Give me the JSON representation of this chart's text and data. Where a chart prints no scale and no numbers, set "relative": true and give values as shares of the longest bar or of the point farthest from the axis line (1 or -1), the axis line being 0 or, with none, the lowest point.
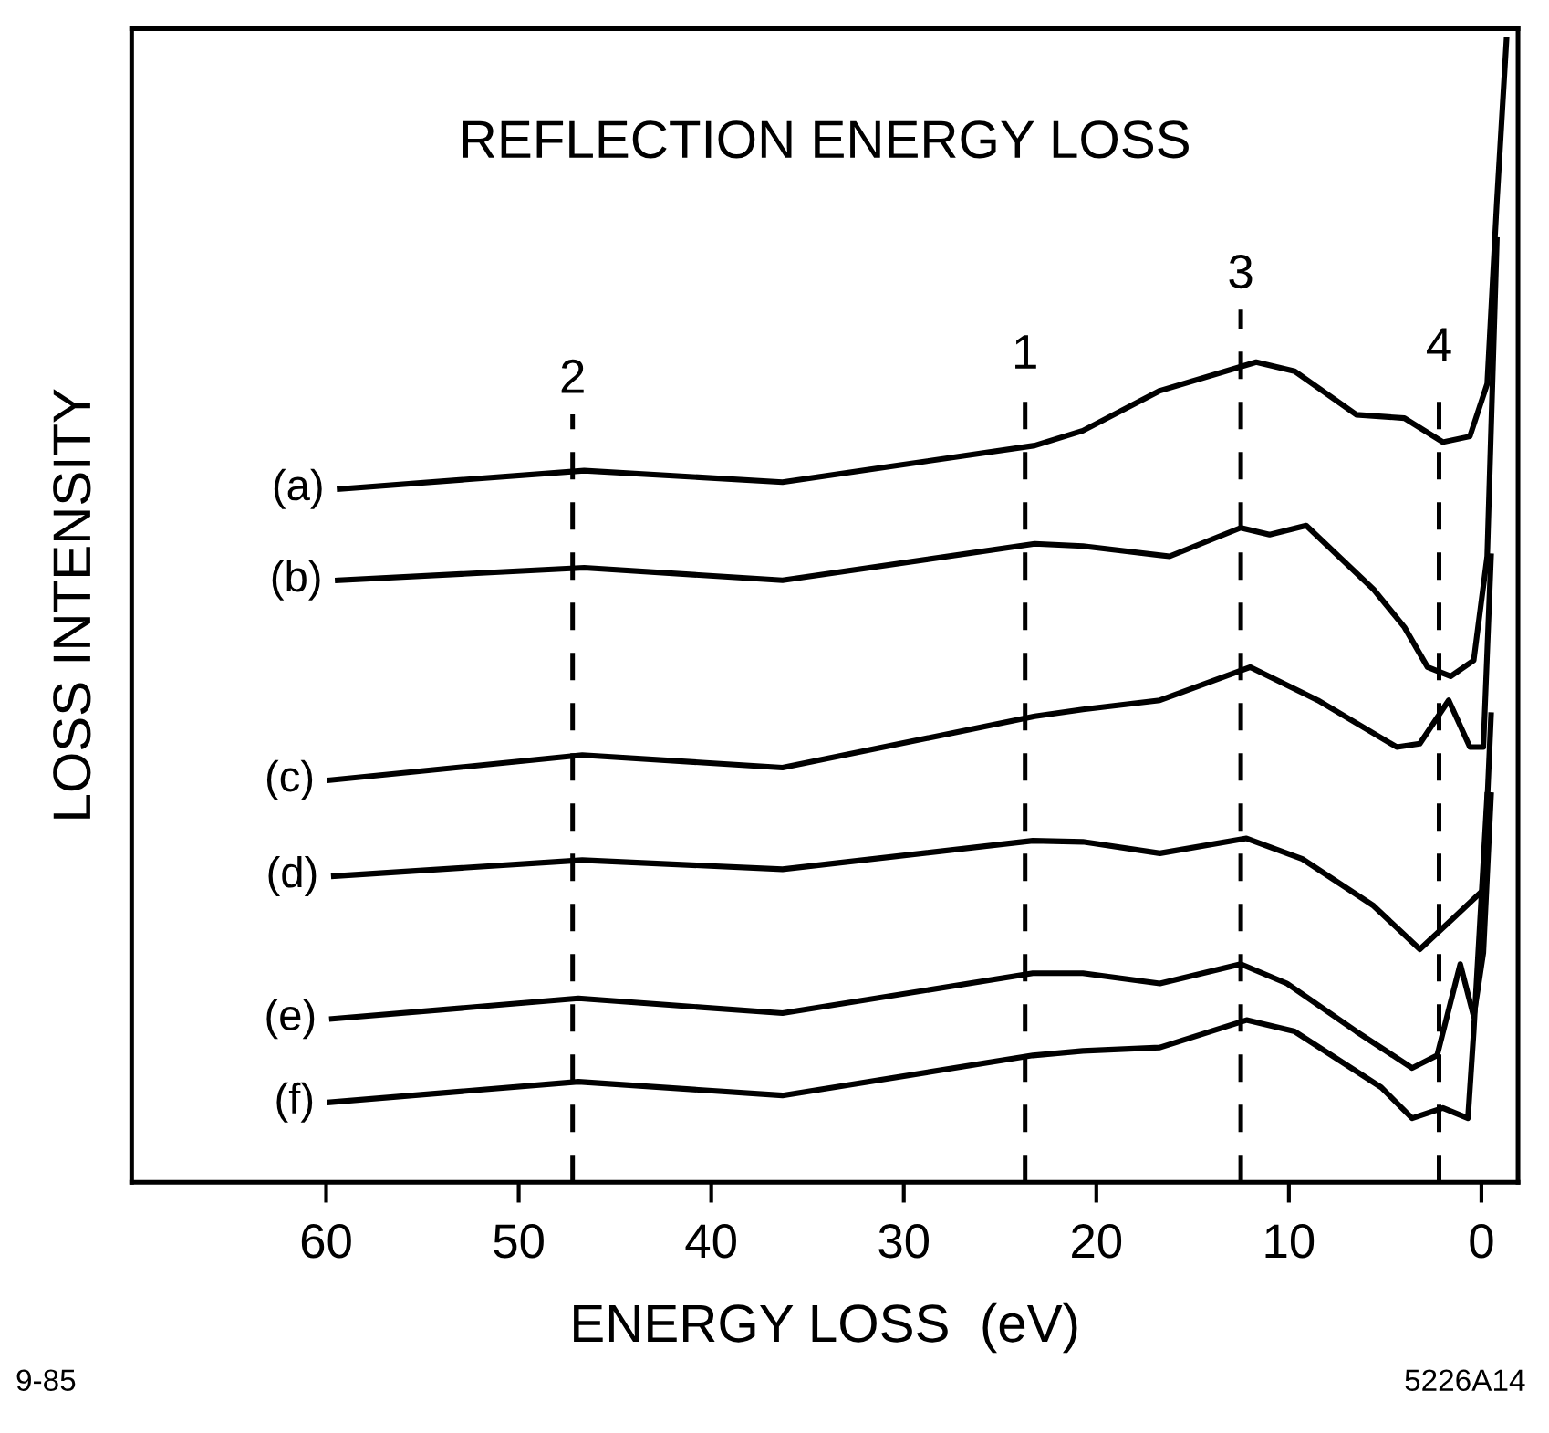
{
  "chart_data": {
    "type": "line",
    "title": "REFLECTION ENERGY LOSS",
    "xlabel": "ENERGY LOSS  (eV)",
    "ylabel": "LOSS INTENSITY",
    "relative": true,
    "tick_labels": "x",
    "grid": false,
    "legend": false,
    "marker": "none",
    "line_style": "solid",
    "xlim": [
      70.1,
      -1.9
    ],
    "xticks": [
      60,
      50,
      40,
      30,
      20,
      10,
      0
    ],
    "series": [
      {
        "name": "(a)",
        "color": "#000000",
        "x": [
          59.3,
          46.6,
          36.3,
          23.2,
          20.7,
          16.7,
          11.7,
          9.7,
          6.5,
          4.0,
          2.0,
          0.6,
          -0.3,
          -0.8,
          -1.3
        ],
        "values": [
          0.607,
          0.623,
          0.613,
          0.645,
          0.658,
          0.693,
          0.718,
          0.71,
          0.672,
          0.669,
          0.648,
          0.653,
          0.699,
          0.858,
          1
        ]
      },
      {
        "name": "(b)",
        "color": "#000000",
        "x": [
          59.4,
          46.6,
          36.3,
          23.2,
          20.7,
          16.2,
          12.5,
          11.0,
          9.1,
          5.6,
          4.0,
          2.8,
          1.6,
          0.4,
          -0.3,
          -0.8
        ],
        "values": [
          0.527,
          0.538,
          0.527,
          0.559,
          0.557,
          0.548,
          0.573,
          0.567,
          0.575,
          0.519,
          0.486,
          0.451,
          0.443,
          0.457,
          0.548,
          0.825
        ]
      },
      {
        "name": "(c)",
        "color": "#000000",
        "x": [
          59.8,
          46.7,
          36.3,
          23.2,
          20.7,
          16.7,
          12.0,
          8.5,
          4.4,
          3.2,
          1.7,
          0.6,
          -0.1,
          -0.5
        ],
        "values": [
          0.352,
          0.374,
          0.363,
          0.408,
          0.414,
          0.422,
          0.451,
          0.422,
          0.381,
          0.384,
          0.422,
          0.381,
          0.381,
          0.548
        ]
      },
      {
        "name": "(d)",
        "color": "#000000",
        "x": [
          59.6,
          46.7,
          36.3,
          23.3,
          20.7,
          16.7,
          12.2,
          9.3,
          5.6,
          3.2,
          1.6,
          -0.1,
          -0.5
        ],
        "values": [
          0.268,
          0.282,
          0.274,
          0.299,
          0.298,
          0.288,
          0.301,
          0.283,
          0.242,
          0.204,
          0.229,
          0.256,
          0.409
        ]
      },
      {
        "name": "(e)",
        "color": "#000000",
        "x": [
          59.7,
          46.9,
          36.3,
          23.3,
          20.7,
          16.7,
          12.5,
          10.1,
          6.5,
          3.6,
          2.3,
          1.1,
          0.4,
          -0.1,
          -0.5
        ],
        "values": [
          0.143,
          0.161,
          0.148,
          0.183,
          0.183,
          0.174,
          0.191,
          0.174,
          0.132,
          0.1,
          0.111,
          0.191,
          0.145,
          0.201,
          0.339
        ]
      },
      {
        "name": "(f)",
        "color": "#000000",
        "x": [
          59.8,
          46.9,
          36.3,
          23.3,
          20.7,
          16.7,
          12.2,
          9.7,
          5.2,
          3.6,
          2.0,
          0.7,
          0.4,
          -0.3
        ],
        "values": [
          0.07,
          0.088,
          0.076,
          0.111,
          0.115,
          0.118,
          0.142,
          0.132,
          0.083,
          0.056,
          0.065,
          0.056,
          0.132,
          0.339
        ]
      }
    ],
    "ref_lines": [
      {
        "axis": "x",
        "value": 47.2,
        "color": "#000000",
        "line_style": "dashed"
      },
      {
        "axis": "x",
        "value": 23.7,
        "color": "#000000",
        "line_style": "dashed"
      },
      {
        "axis": "x",
        "value": 12.5,
        "color": "#000000",
        "line_style": "dashed"
      },
      {
        "axis": "x",
        "value": 2.2,
        "color": "#000000",
        "line_style": "dashed"
      }
    ],
    "annotations": [
      "2",
      "1",
      "3",
      "4",
      "9-85",
      "5226A14"
    ]
  }
}
